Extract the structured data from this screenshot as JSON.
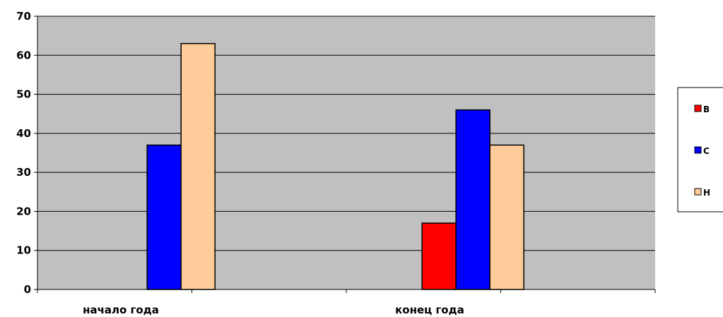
{
  "chart_data": {
    "type": "bar",
    "categories": [
      "начало года",
      "конец года"
    ],
    "series": [
      {
        "name": "В",
        "color": "#ff0000",
        "values": [
          0,
          17
        ]
      },
      {
        "name": "С",
        "color": "#0000ff",
        "values": [
          37,
          46
        ]
      },
      {
        "name": "Н",
        "color": "#ffcc99",
        "values": [
          63,
          37
        ]
      }
    ],
    "ylim": [
      0,
      70
    ],
    "yticks": [
      0,
      10,
      20,
      30,
      40,
      50,
      60,
      70
    ],
    "grid": true,
    "plot_background": "#c0c0c0",
    "legend_position": "right"
  }
}
